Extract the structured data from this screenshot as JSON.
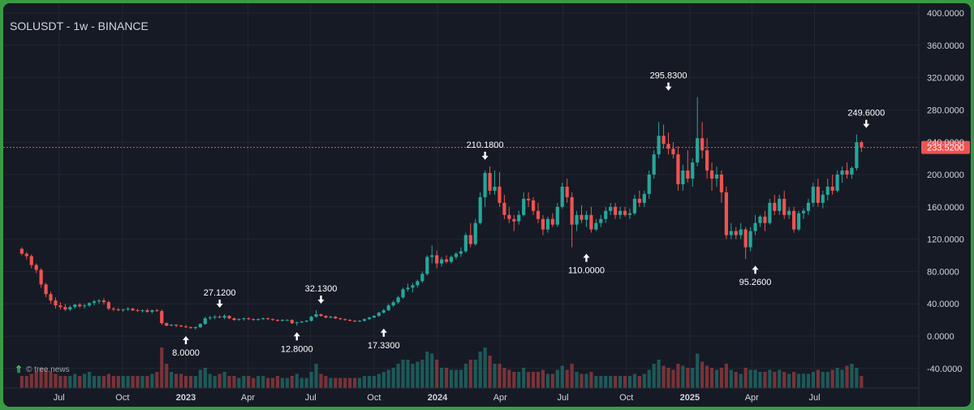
{
  "header": {
    "title": "SOLUSDT - 1w - BINANCE"
  },
  "watermark": {
    "text": "© tree.news"
  },
  "colors": {
    "up": "#26a69a",
    "down": "#ef5350",
    "background": "#161a25",
    "grid": "#232732",
    "text": "#d1d4dc",
    "price_line": "#ef5350"
  },
  "chart_data": {
    "type": "candlestick",
    "symbol": "SOLUSDT",
    "interval": "1w",
    "exchange": "BINANCE",
    "y_axis": {
      "min": -40,
      "max": 400,
      "ticks": [
        "400.0000",
        "360.0000",
        "320.0000",
        "280.0000",
        "240.0000",
        "200.0000",
        "160.0000",
        "120.0000",
        "80.0000",
        "40.0000",
        "0.0000",
        "-40.0000"
      ]
    },
    "x_axis": {
      "ticks": [
        {
          "label": "Jul",
          "date": "2022-07-01",
          "bold": false
        },
        {
          "label": "Oct",
          "date": "2022-10-01",
          "bold": false
        },
        {
          "label": "2023",
          "date": "2023-01-01",
          "bold": true
        },
        {
          "label": "Apr",
          "date": "2023-04-01",
          "bold": false
        },
        {
          "label": "Jul",
          "date": "2023-07-01",
          "bold": false
        },
        {
          "label": "Oct",
          "date": "2023-10-01",
          "bold": false
        },
        {
          "label": "2024",
          "date": "2024-01-01",
          "bold": true
        },
        {
          "label": "Apr",
          "date": "2024-04-01",
          "bold": false
        },
        {
          "label": "Jul",
          "date": "2024-07-01",
          "bold": false
        },
        {
          "label": "Oct",
          "date": "2024-10-01",
          "bold": false
        },
        {
          "label": "2025",
          "date": "2025-01-01",
          "bold": true
        },
        {
          "label": "Apr",
          "date": "2025-04-01",
          "bold": false
        },
        {
          "label": "Jul",
          "date": "2025-07-01",
          "bold": false
        }
      ]
    },
    "grid": true,
    "current_price": {
      "value": 233.52,
      "label": "233.5200"
    },
    "annotations": [
      {
        "text": "8.0000",
        "date": "2023-01-01",
        "value": 8.0,
        "side": "below"
      },
      {
        "text": "27.1200",
        "date": "2023-02-19",
        "value": 27.12,
        "side": "above"
      },
      {
        "text": "12.8000",
        "date": "2023-06-11",
        "value": 12.8,
        "side": "below"
      },
      {
        "text": "32.1300",
        "date": "2023-07-16",
        "value": 32.13,
        "side": "above"
      },
      {
        "text": "17.3300",
        "date": "2023-10-15",
        "value": 17.33,
        "side": "below"
      },
      {
        "text": "210.1800",
        "date": "2024-03-10",
        "value": 210.18,
        "side": "above"
      },
      {
        "text": "110.0000",
        "date": "2024-08-04",
        "value": 110.0,
        "side": "below"
      },
      {
        "text": "295.8300",
        "date": "2024-12-01",
        "value": 295.83,
        "side": "above"
      },
      {
        "text": "95.2600",
        "date": "2025-04-06",
        "value": 95.26,
        "side": "below"
      },
      {
        "text": "249.6000",
        "date": "2025-09-14",
        "value": 249.6,
        "side": "above"
      }
    ],
    "ohlc_weekly": {
      "start": "2022-05-08",
      "series": [
        [
          108,
          110,
          100,
          102
        ],
        [
          102,
          104,
          95,
          99
        ],
        [
          99,
          101,
          84,
          88
        ],
        [
          88,
          90,
          78,
          82
        ],
        [
          82,
          84,
          60,
          64
        ],
        [
          64,
          66,
          48,
          52
        ],
        [
          52,
          55,
          40,
          44
        ],
        [
          44,
          48,
          34,
          38
        ],
        [
          38,
          42,
          33,
          36
        ],
        [
          36,
          40,
          31,
          33
        ],
        [
          33,
          38,
          31,
          36
        ],
        [
          36,
          40,
          34,
          39
        ],
        [
          39,
          41,
          35,
          37
        ],
        [
          37,
          40,
          34,
          38
        ],
        [
          38,
          42,
          36,
          41
        ],
        [
          41,
          45,
          38,
          43
        ],
        [
          43,
          46,
          40,
          44
        ],
        [
          44,
          47,
          39,
          42
        ],
        [
          42,
          44,
          32,
          34
        ],
        [
          34,
          36,
          31,
          33
        ],
        [
          33,
          35,
          31,
          32
        ],
        [
          32,
          34,
          30,
          33
        ],
        [
          33,
          36,
          31,
          34
        ],
        [
          34,
          35,
          31,
          32
        ],
        [
          32,
          34,
          30,
          31
        ],
        [
          31,
          33,
          29,
          32
        ],
        [
          32,
          34,
          29,
          30
        ],
        [
          30,
          33,
          28,
          32
        ],
        [
          32,
          34,
          30,
          31
        ],
        [
          31,
          33,
          14,
          16
        ],
        [
          16,
          17,
          12,
          13
        ],
        [
          13,
          15,
          12,
          14
        ],
        [
          14,
          15,
          11,
          13
        ],
        [
          13,
          14,
          11,
          12
        ],
        [
          12,
          14,
          10,
          11
        ],
        [
          11,
          12,
          9,
          10
        ],
        [
          10,
          12,
          8,
          11
        ],
        [
          11,
          16,
          10,
          15
        ],
        [
          15,
          24,
          14,
          22
        ],
        [
          22,
          25,
          20,
          23
        ],
        [
          23,
          26,
          21,
          24
        ],
        [
          24,
          26,
          22,
          23
        ],
        [
          23,
          27.12,
          21,
          25
        ],
        [
          25,
          26,
          21,
          22
        ],
        [
          22,
          23,
          19,
          20
        ],
        [
          20,
          22,
          19,
          21
        ],
        [
          21,
          23,
          19,
          22
        ],
        [
          22,
          23,
          20,
          21
        ],
        [
          21,
          22,
          19,
          20
        ],
        [
          20,
          22,
          19,
          21
        ],
        [
          21,
          23,
          20,
          22
        ],
        [
          22,
          23,
          20,
          21
        ],
        [
          21,
          22,
          19,
          20
        ],
        [
          20,
          21,
          18,
          19
        ],
        [
          19,
          21,
          18,
          20
        ],
        [
          20,
          21,
          19,
          20
        ],
        [
          20,
          21,
          15,
          16
        ],
        [
          16,
          18,
          12.8,
          17
        ],
        [
          17,
          19,
          16,
          18
        ],
        [
          18,
          20,
          17,
          19
        ],
        [
          19,
          25,
          18,
          24
        ],
        [
          24,
          32.13,
          23,
          27
        ],
        [
          27,
          28,
          24,
          25
        ],
        [
          25,
          26,
          22,
          23
        ],
        [
          23,
          25,
          22,
          24
        ],
        [
          24,
          25,
          21,
          22
        ],
        [
          22,
          23,
          20,
          21
        ],
        [
          21,
          22,
          19,
          20
        ],
        [
          20,
          21,
          18,
          19
        ],
        [
          19,
          20,
          17.33,
          18
        ],
        [
          18,
          20,
          17.5,
          19
        ],
        [
          19,
          22,
          18,
          21
        ],
        [
          21,
          24,
          20,
          23
        ],
        [
          23,
          26,
          22,
          25
        ],
        [
          25,
          30,
          24,
          29
        ],
        [
          29,
          34,
          28,
          32
        ],
        [
          32,
          40,
          31,
          38
        ],
        [
          38,
          44,
          36,
          42
        ],
        [
          42,
          50,
          40,
          48
        ],
        [
          48,
          60,
          46,
          58
        ],
        [
          58,
          65,
          55,
          60
        ],
        [
          60,
          66,
          54,
          63
        ],
        [
          63,
          70,
          60,
          68
        ],
        [
          68,
          80,
          66,
          77
        ],
        [
          77,
          100,
          75,
          98
        ],
        [
          98,
          112,
          90,
          100
        ],
        [
          100,
          106,
          84,
          90
        ],
        [
          90,
          98,
          86,
          95
        ],
        [
          95,
          100,
          90,
          92
        ],
        [
          92,
          100,
          90,
          98
        ],
        [
          98,
          104,
          95,
          102
        ],
        [
          102,
          110,
          98,
          105
        ],
        [
          105,
          128,
          103,
          125
        ],
        [
          125,
          140,
          110,
          114
        ],
        [
          114,
          145,
          112,
          140
        ],
        [
          140,
          178,
          138,
          172
        ],
        [
          172,
          205,
          160,
          202
        ],
        [
          202,
          210.18,
          175,
          180
        ],
        [
          180,
          205,
          175,
          185
        ],
        [
          185,
          203,
          160,
          165
        ],
        [
          165,
          175,
          145,
          150
        ],
        [
          150,
          160,
          140,
          145
        ],
        [
          145,
          150,
          130,
          142
        ],
        [
          142,
          155,
          138,
          150
        ],
        [
          150,
          178,
          148,
          170
        ],
        [
          170,
          178,
          160,
          168
        ],
        [
          168,
          172,
          150,
          155
        ],
        [
          155,
          165,
          140,
          145
        ],
        [
          145,
          150,
          125,
          132
        ],
        [
          132,
          148,
          128,
          145
        ],
        [
          145,
          152,
          135,
          138
        ],
        [
          138,
          165,
          135,
          160
        ],
        [
          160,
          190,
          158,
          185
        ],
        [
          185,
          195,
          165,
          172
        ],
        [
          172,
          178,
          110,
          138
        ],
        [
          138,
          155,
          130,
          150
        ],
        [
          150,
          162,
          140,
          144
        ],
        [
          144,
          155,
          135,
          150
        ],
        [
          150,
          160,
          128,
          132
        ],
        [
          132,
          145,
          130,
          140
        ],
        [
          140,
          150,
          135,
          145
        ],
        [
          145,
          160,
          140,
          155
        ],
        [
          155,
          165,
          150,
          160
        ],
        [
          160,
          165,
          145,
          150
        ],
        [
          150,
          160,
          145,
          155
        ],
        [
          155,
          160,
          148,
          150
        ],
        [
          150,
          158,
          145,
          152
        ],
        [
          152,
          175,
          150,
          170
        ],
        [
          170,
          180,
          160,
          165
        ],
        [
          165,
          180,
          160,
          176
        ],
        [
          176,
          205,
          170,
          200
        ],
        [
          200,
          230,
          195,
          225
        ],
        [
          225,
          265,
          220,
          248
        ],
        [
          248,
          262,
          232,
          238
        ],
        [
          238,
          252,
          225,
          232
        ],
        [
          232,
          240,
          220,
          225
        ],
        [
          225,
          235,
          180,
          188
        ],
        [
          188,
          212,
          180,
          205
        ],
        [
          205,
          230,
          190,
          195
        ],
        [
          195,
          220,
          185,
          215
        ],
        [
          215,
          295.83,
          210,
          245
        ],
        [
          245,
          265,
          220,
          230
        ],
        [
          230,
          245,
          195,
          205
        ],
        [
          205,
          215,
          180,
          195
        ],
        [
          195,
          210,
          185,
          200
        ],
        [
          200,
          205,
          165,
          178
        ],
        [
          178,
          185,
          120,
          125
        ],
        [
          125,
          140,
          120,
          130
        ],
        [
          130,
          135,
          120,
          125
        ],
        [
          125,
          140,
          120,
          132
        ],
        [
          132,
          135,
          95.26,
          110
        ],
        [
          110,
          135,
          105,
          130
        ],
        [
          130,
          150,
          125,
          140
        ],
        [
          140,
          150,
          135,
          148
        ],
        [
          148,
          155,
          130,
          140
        ],
        [
          140,
          170,
          138,
          165
        ],
        [
          165,
          175,
          150,
          155
        ],
        [
          155,
          175,
          150,
          170
        ],
        [
          170,
          180,
          145,
          150
        ],
        [
          150,
          160,
          145,
          155
        ],
        [
          155,
          160,
          128,
          132
        ],
        [
          132,
          155,
          130,
          152
        ],
        [
          152,
          158,
          145,
          155
        ],
        [
          155,
          170,
          150,
          165
        ],
        [
          165,
          190,
          160,
          185
        ],
        [
          185,
          195,
          160,
          165
        ],
        [
          165,
          180,
          158,
          175
        ],
        [
          175,
          195,
          168,
          185
        ],
        [
          185,
          200,
          175,
          180
        ],
        [
          180,
          205,
          178,
          200
        ],
        [
          200,
          210,
          190,
          205
        ],
        [
          205,
          215,
          195,
          200
        ],
        [
          200,
          210,
          195,
          208
        ],
        [
          208,
          249.6,
          205,
          240
        ],
        [
          240,
          242,
          228,
          233.52
        ]
      ]
    },
    "volume_relative": [
      0.3,
      0.3,
      0.35,
      0.4,
      0.5,
      0.45,
      0.4,
      0.35,
      0.3,
      0.3,
      0.3,
      0.35,
      0.3,
      0.35,
      0.4,
      0.3,
      0.3,
      0.3,
      0.35,
      0.3,
      0.3,
      0.3,
      0.3,
      0.3,
      0.3,
      0.3,
      0.3,
      0.35,
      0.4,
      1.0,
      0.6,
      0.4,
      0.35,
      0.35,
      0.3,
      0.3,
      0.3,
      0.45,
      0.5,
      0.35,
      0.3,
      0.35,
      0.4,
      0.3,
      0.3,
      0.25,
      0.3,
      0.3,
      0.25,
      0.3,
      0.3,
      0.25,
      0.25,
      0.3,
      0.25,
      0.25,
      0.3,
      0.35,
      0.25,
      0.25,
      0.4,
      0.6,
      0.35,
      0.3,
      0.25,
      0.25,
      0.25,
      0.25,
      0.25,
      0.25,
      0.25,
      0.3,
      0.3,
      0.3,
      0.35,
      0.4,
      0.45,
      0.5,
      0.6,
      0.7,
      0.7,
      0.6,
      0.65,
      0.7,
      0.9,
      0.85,
      0.7,
      0.5,
      0.5,
      0.45,
      0.45,
      0.45,
      0.6,
      0.7,
      0.7,
      0.9,
      1.0,
      0.8,
      0.6,
      0.6,
      0.5,
      0.45,
      0.4,
      0.4,
      0.5,
      0.4,
      0.4,
      0.4,
      0.45,
      0.35,
      0.35,
      0.45,
      0.55,
      0.45,
      0.6,
      0.4,
      0.35,
      0.35,
      0.4,
      0.3,
      0.3,
      0.3,
      0.3,
      0.3,
      0.3,
      0.3,
      0.3,
      0.35,
      0.3,
      0.35,
      0.45,
      0.6,
      0.7,
      0.55,
      0.5,
      0.45,
      0.6,
      0.55,
      0.5,
      0.5,
      0.85,
      0.65,
      0.55,
      0.5,
      0.45,
      0.5,
      0.6,
      0.45,
      0.4,
      0.35,
      0.5,
      0.45,
      0.45,
      0.4,
      0.4,
      0.45,
      0.4,
      0.45,
      0.4,
      0.35,
      0.4,
      0.35,
      0.35,
      0.35,
      0.4,
      0.45,
      0.4,
      0.4,
      0.45,
      0.5,
      0.45,
      0.55,
      0.6,
      0.5,
      0.3
    ]
  }
}
